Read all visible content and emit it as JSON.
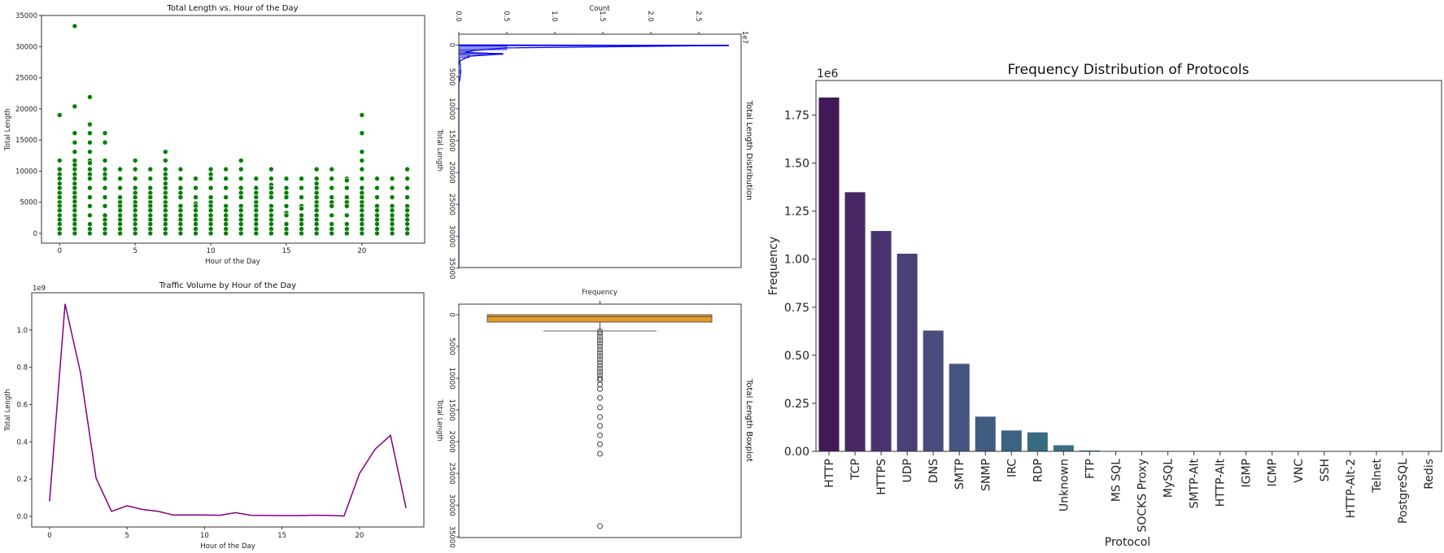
{
  "chart_data": [
    {
      "type": "scatter",
      "title": "Total Length vs. Hour of the Day",
      "xlabel": "Hour of the Day",
      "ylabel": "Total Length",
      "xlim": [
        -1.2,
        24.15
      ],
      "ylim": [
        -1570,
        35000
      ],
      "xticks": [
        0,
        5,
        10,
        15,
        20
      ],
      "yticks": [
        0,
        5000,
        10000,
        15000,
        20000,
        25000,
        30000,
        35000
      ],
      "color": "#008000",
      "grid": false,
      "points_by_hour": [
        [
          19000,
          11700,
          10300,
          9500,
          8800,
          8000,
          7300,
          6500,
          5800,
          5000,
          4400,
          3700,
          2900,
          2200,
          1500,
          700,
          0
        ],
        [
          33300,
          20400,
          16100,
          14600,
          13100,
          11700,
          11000,
          10300,
          9500,
          8800,
          8000,
          7300,
          6500,
          5800,
          5100,
          4400,
          3700,
          2900,
          2200,
          1500,
          700,
          0
        ],
        [
          21900,
          17500,
          16100,
          14600,
          13100,
          11700,
          11300,
          10300,
          9500,
          8800,
          7300,
          5800,
          4400,
          2900,
          1500,
          700,
          0
        ],
        [
          16100,
          14600,
          11700,
          10300,
          9500,
          8800,
          7300,
          5800,
          4400,
          2900,
          2200,
          1500,
          700,
          0
        ],
        [
          10300,
          8800,
          7300,
          5800,
          5000,
          4400,
          3700,
          2900,
          2200,
          1500,
          700,
          0
        ],
        [
          11700,
          10300,
          8800,
          7300,
          6500,
          5800,
          5000,
          4400,
          3700,
          2900,
          2200,
          1500,
          700,
          0
        ],
        [
          10300,
          8800,
          7300,
          6500,
          5800,
          5000,
          4400,
          3700,
          2900,
          2200,
          1500,
          700,
          0
        ],
        [
          13100,
          11700,
          10300,
          9500,
          8800,
          8000,
          7300,
          6500,
          5800,
          5000,
          4400,
          3700,
          2900,
          2200,
          1500,
          700,
          0
        ],
        [
          10300,
          8800,
          7300,
          6500,
          5800,
          4400,
          3700,
          2900,
          2200,
          1500,
          700,
          0
        ],
        [
          8800,
          7300,
          5800,
          4800,
          4400,
          3700,
          2900,
          2200,
          1500,
          700,
          0
        ],
        [
          10300,
          9500,
          8800,
          7300,
          5800,
          5000,
          4400,
          3700,
          2900,
          2200,
          1500,
          700,
          0
        ],
        [
          10300,
          8800,
          7300,
          5800,
          4400,
          3700,
          2900,
          2200,
          1500,
          700,
          0
        ],
        [
          11700,
          10300,
          8800,
          7300,
          6500,
          5800,
          4400,
          3700,
          2900,
          2200,
          1500,
          700,
          0
        ],
        [
          8800,
          7300,
          6500,
          5800,
          5000,
          4400,
          3700,
          2900,
          2200,
          1500,
          700,
          0
        ],
        [
          10300,
          8800,
          7800,
          7300,
          6500,
          5800,
          4400,
          3700,
          2900,
          2200,
          1500,
          700,
          0
        ],
        [
          8800,
          7300,
          6500,
          5800,
          4400,
          3300,
          2900,
          1500,
          700,
          0
        ],
        [
          8800,
          7300,
          5800,
          4400,
          4000,
          2900,
          2200,
          1500,
          700,
          0
        ],
        [
          10300,
          8800,
          8000,
          7300,
          6500,
          5800,
          5000,
          4400,
          3700,
          2900,
          2200,
          1500,
          700,
          0
        ],
        [
          10300,
          8800,
          7300,
          5800,
          5000,
          4400,
          2900,
          1500,
          700,
          0
        ],
        [
          8800,
          8500,
          7300,
          5800,
          5000,
          4400,
          2900,
          1500,
          700,
          0
        ],
        [
          19000,
          16100,
          13100,
          11700,
          10300,
          8800,
          7300,
          6500,
          5800,
          5000,
          4400,
          3700,
          2900,
          2200,
          1500,
          700,
          0
        ],
        [
          8800,
          7300,
          5800,
          4400,
          3700,
          2900,
          2200,
          1500,
          700,
          0
        ],
        [
          8800,
          7300,
          5800,
          4400,
          3700,
          2900,
          2200,
          1500,
          700,
          0
        ],
        [
          10300,
          8800,
          7300,
          5800,
          4400,
          3700,
          2900,
          2200,
          1500,
          700,
          0
        ]
      ]
    },
    {
      "type": "line",
      "title": "Traffic Volume by Hour of the Day",
      "xlabel": "Hour of the Day",
      "ylabel": "Total Length",
      "offset_label": "1e9",
      "xlim": [
        -1.15,
        24.15
      ],
      "ylim": [
        -0.057,
        1.2
      ],
      "xticks": [
        0,
        5,
        10,
        15,
        20
      ],
      "yticks": [
        "0.0",
        "0.2",
        "0.4",
        "0.6",
        "0.8",
        "1.0"
      ],
      "color": "#800080",
      "x": [
        0,
        1,
        2,
        3,
        4,
        5,
        6,
        7,
        8,
        9,
        10,
        11,
        12,
        13,
        14,
        15,
        16,
        17,
        18,
        19,
        20,
        21,
        22,
        23
      ],
      "y": [
        0.08,
        1.14,
        0.77,
        0.205,
        0.027,
        0.057,
        0.037,
        0.027,
        0.007,
        0.007,
        0.007,
        0.006,
        0.02,
        0.006,
        0.005,
        0.004,
        0.004,
        0.006,
        0.005,
        0.002,
        0.23,
        0.36,
        0.435,
        0.045
      ]
    },
    {
      "type": "bar",
      "orientation": "horizontal (rotated 90°)",
      "xlabel": "Count",
      "ylabel": "Total Length",
      "right_label": "Total Length Distribution",
      "offset_label": "1e7",
      "xlim": [
        0,
        2.94
      ],
      "ylim": [
        -1700,
        34900
      ],
      "xticks": [
        "0.0",
        "0.5",
        "1.0",
        "1.5",
        "2.0",
        "2.5"
      ],
      "yticks": [
        "0",
        "5000",
        "10000",
        "15000",
        "20000",
        "25000",
        "30000",
        "35000"
      ],
      "color": "#0000ff",
      "bins": [
        {
          "from": 0,
          "to": 150,
          "count": 2.81
        },
        {
          "from": 150,
          "to": 750,
          "count": 0.5
        },
        {
          "from": 750,
          "to": 1000,
          "count": 0.14
        },
        {
          "from": 1000,
          "to": 1300,
          "count": 0.07
        },
        {
          "from": 1300,
          "to": 1500,
          "count": 0.46
        },
        {
          "from": 1500,
          "to": 2000,
          "count": 0.11
        },
        {
          "from": 2000,
          "to": 3000,
          "count": 0.01
        },
        {
          "from": 4000,
          "to": 4400,
          "count": 0.02
        },
        {
          "from": 5200,
          "to": 5600,
          "count": 0.01
        }
      ]
    },
    {
      "type": "box",
      "xlabel": "Frequency",
      "ylabel": "Total Length",
      "right_label": "Total Length Boxplot",
      "ylim": [
        -1670,
        35100
      ],
      "yticks": [
        "0",
        "5000",
        "10000",
        "15000",
        "20000",
        "25000",
        "30000",
        "35000"
      ],
      "color": "#e69c24",
      "q1": 0,
      "median": 300,
      "q3": 1150,
      "whisker_low": 0,
      "whisker_high": 2550,
      "outliers": [
        2600,
        3000,
        3500,
        4000,
        4500,
        5000,
        5500,
        6000,
        6500,
        7000,
        7500,
        8000,
        8500,
        9000,
        9500,
        10000,
        10300,
        11000,
        11700,
        13100,
        14600,
        16100,
        17500,
        19000,
        20400,
        21900,
        33300
      ]
    },
    {
      "type": "bar",
      "title": "Frequency Distribution of Protocols",
      "xlabel": "Protocol",
      "ylabel": "Frequency",
      "offset_label": "1e6",
      "ylim": [
        0,
        1.93
      ],
      "yticks": [
        "0.00",
        "0.25",
        "0.50",
        "0.75",
        "1.00",
        "1.25",
        "1.50",
        "1.75"
      ],
      "palette": "viridis",
      "categories": [
        "HTTP",
        "TCP",
        "HTTPS",
        "UDP",
        "DNS",
        "SMTP",
        "SNMP",
        "IRC",
        "RDP",
        "Unknown",
        "FTP",
        "MS SQL",
        "SOCKS Proxy",
        "MySQL",
        "SMTP-Alt",
        "HTTP-Alt",
        "IGMP",
        "ICMP",
        "VNC",
        "SSH",
        "HTTP-Alt-2",
        "Telnet",
        "PostgreSQL",
        "Redis"
      ],
      "values": [
        1.843,
        1.35,
        1.148,
        1.03,
        0.63,
        0.457,
        0.182,
        0.11,
        0.1,
        0.033,
        0.006,
        0,
        0,
        0,
        0,
        0,
        0,
        0,
        0,
        0,
        0,
        0,
        0,
        0
      ]
    }
  ]
}
